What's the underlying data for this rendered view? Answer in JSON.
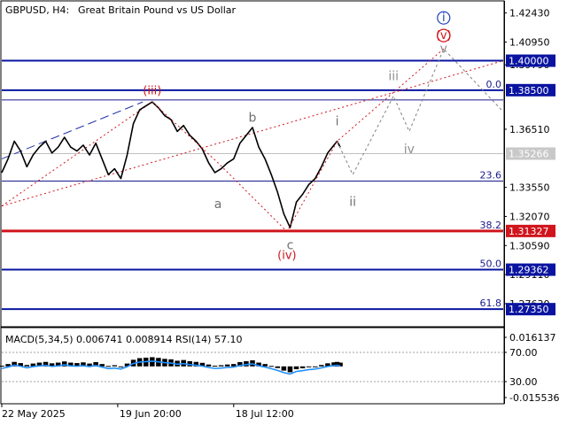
{
  "header": {
    "symbol": "GBPUSD, H4:",
    "description": "Great Britain Pound vs US Dollar"
  },
  "chart_data": {
    "type": "line",
    "subtype": "candlestick-price-with-elliott-wave-annotation",
    "title": "GBPUSD, H4:  Great Britain Pound vs US Dollar",
    "price_axis": {
      "ylim": [
        1.265,
        1.43
      ],
      "ticks": [
        "1.42430",
        "1.40950",
        "1.39790",
        "1.36510",
        "1.33550",
        "1.32070",
        "1.30590",
        "1.29110",
        "1.27630"
      ]
    },
    "time_axis": {
      "ticks": [
        "22 May 2025",
        "19 Jun 20:00",
        "18 Jul 12:00"
      ],
      "range": [
        0,
        110
      ],
      "tick_x": [
        0,
        37,
        74
      ],
      "future_end": 160
    },
    "price_series": [
      [
        0,
        1.343
      ],
      [
        2,
        1.35
      ],
      [
        4,
        1.359
      ],
      [
        6,
        1.354
      ],
      [
        8,
        1.346
      ],
      [
        10,
        1.352
      ],
      [
        12,
        1.356
      ],
      [
        14,
        1.359
      ],
      [
        16,
        1.353
      ],
      [
        18,
        1.356
      ],
      [
        20,
        1.361
      ],
      [
        22,
        1.356
      ],
      [
        24,
        1.354
      ],
      [
        26,
        1.357
      ],
      [
        28,
        1.352
      ],
      [
        30,
        1.358
      ],
      [
        32,
        1.35
      ],
      [
        34,
        1.342
      ],
      [
        36,
        1.345
      ],
      [
        38,
        1.34
      ],
      [
        40,
        1.352
      ],
      [
        42,
        1.368
      ],
      [
        44,
        1.375
      ],
      [
        46,
        1.377
      ],
      [
        48,
        1.379
      ],
      [
        50,
        1.376
      ],
      [
        52,
        1.372
      ],
      [
        54,
        1.37
      ],
      [
        56,
        1.364
      ],
      [
        58,
        1.367
      ],
      [
        60,
        1.362
      ],
      [
        62,
        1.359
      ],
      [
        64,
        1.355
      ],
      [
        66,
        1.348
      ],
      [
        68,
        1.343
      ],
      [
        70,
        1.345
      ],
      [
        72,
        1.348
      ],
      [
        74,
        1.35
      ],
      [
        76,
        1.358
      ],
      [
        78,
        1.362
      ],
      [
        80,
        1.366
      ],
      [
        82,
        1.356
      ],
      [
        84,
        1.35
      ],
      [
        86,
        1.342
      ],
      [
        88,
        1.333
      ],
      [
        90,
        1.322
      ],
      [
        92,
        1.315
      ],
      [
        94,
        1.328
      ],
      [
        96,
        1.332
      ],
      [
        98,
        1.337
      ],
      [
        100,
        1.34
      ],
      [
        102,
        1.346
      ],
      [
        104,
        1.353
      ],
      [
        106,
        1.357
      ],
      [
        107,
        1.359
      ],
      [
        108,
        1.356
      ]
    ],
    "fib_levels": [
      {
        "label": "0.0",
        "price": 1.385
      },
      {
        "label": "23.6",
        "price": 1.3387
      },
      {
        "label": "38.2",
        "price": 1.3133
      },
      {
        "label": "50.0",
        "price": 1.2936
      },
      {
        "label": "61.8",
        "price": 1.2735
      }
    ],
    "extra_level": {
      "price": 1.38
    },
    "key_levels": [
      {
        "label": "1.40000",
        "price": 1.4,
        "color": "#0a14a0"
      },
      {
        "label": "1.38500",
        "price": 1.385,
        "color": "#0a14a0"
      },
      {
        "label": "1.31327",
        "price": 1.3133,
        "color": "#d0151c"
      },
      {
        "label": "1.29362",
        "price": 1.2936,
        "color": "#0a14a0"
      },
      {
        "label": "1.27350",
        "price": 1.2735,
        "color": "#0a14a0"
      }
    ],
    "current_price": {
      "label": "1.35266",
      "price": 1.3527
    },
    "wave_labels": [
      {
        "text": "(iii)",
        "x": 48,
        "price": 1.383,
        "color": "#d0151c",
        "group": "red"
      },
      {
        "text": "(iv)",
        "x": 91,
        "price": 1.299,
        "color": "#d0151c",
        "group": "red"
      },
      {
        "text": "(v)",
        "x": 141,
        "price": 1.411,
        "color": "#d0151c",
        "group": "red-circle"
      },
      {
        "text": "i",
        "x": 141,
        "price": 1.42,
        "color": "#1c3fb8",
        "group": "blue-circle"
      },
      {
        "text": "a",
        "x": 69,
        "price": 1.325,
        "color": "#707070",
        "group": "gray"
      },
      {
        "text": "b",
        "x": 80,
        "price": 1.369,
        "color": "#707070",
        "group": "gray"
      },
      {
        "text": "c",
        "x": 92,
        "price": 1.304,
        "color": "#707070",
        "group": "gray"
      },
      {
        "text": "i",
        "x": 107,
        "price": 1.367,
        "color": "#707070",
        "group": "gray"
      },
      {
        "text": "ii",
        "x": 112,
        "price": 1.326,
        "color": "#707070",
        "group": "gray"
      },
      {
        "text": "iii",
        "x": 125,
        "price": 1.39,
        "color": "#909090",
        "group": "gray"
      },
      {
        "text": "iv",
        "x": 130,
        "price": 1.353,
        "color": "#909090",
        "group": "gray"
      },
      {
        "text": "v",
        "x": 141,
        "price": 1.404,
        "color": "#909090",
        "group": "gray"
      }
    ],
    "wave_path_red": [
      [
        48,
        1.379
      ],
      [
        69,
        1.348
      ],
      [
        91,
        1.313
      ],
      [
        107,
        1.359
      ],
      [
        141,
        1.406
      ]
    ],
    "wave_path_forecast": [
      [
        107,
        1.359
      ],
      [
        112,
        1.342
      ],
      [
        125,
        1.382
      ],
      [
        130,
        1.364
      ],
      [
        141,
        1.406
      ],
      [
        160,
        1.374
      ]
    ],
    "channel": [
      {
        "from": [
          0,
          1.326
        ],
        "to": [
          48,
          1.379
        ],
        "style": "dot",
        "color": "#d0151c"
      },
      {
        "from": [
          0,
          1.326
        ],
        "to": [
          160,
          1.4
        ],
        "style": "dot",
        "color": "#d0151c"
      },
      {
        "from": [
          0,
          1.35
        ],
        "to": [
          45,
          1.379
        ],
        "style": "dash",
        "color": "#2233aa"
      }
    ]
  },
  "indicator": {
    "label": "MACD(5,34,5) 0.006741 0.008914 RSI(14) 57.10",
    "ticks": [
      "0.016137",
      "70.00",
      "30.00",
      "-0.015536"
    ],
    "ylim": [
      -0.0155,
      0.0161
    ]
  }
}
